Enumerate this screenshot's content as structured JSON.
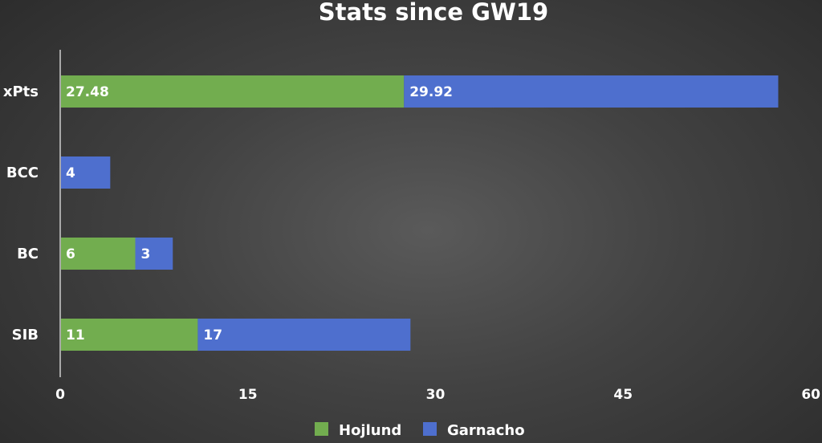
{
  "colors": {
    "Hojlund": "#72ad4f",
    "Garnacho": "#4e6fce",
    "axis": "#a8a8a8",
    "text": "#ffffff"
  },
  "chart_data": {
    "type": "bar",
    "orientation": "horizontal",
    "stacked": true,
    "title": "Stats since GW19",
    "categories": [
      "xPts",
      "BCC",
      "BC",
      "SIB"
    ],
    "series": [
      {
        "name": "Hojlund",
        "values": [
          27.48,
          0,
          6,
          11
        ],
        "labels": [
          "27.48",
          "",
          "6",
          "11"
        ]
      },
      {
        "name": "Garnacho",
        "values": [
          29.92,
          4,
          3,
          17
        ],
        "labels": [
          "29.92",
          "4",
          "3",
          "17"
        ]
      }
    ],
    "xlim": [
      0,
      60
    ],
    "xticks": [
      "0",
      "15",
      "30",
      "45",
      "60"
    ],
    "grid": false,
    "legend": "bottom"
  }
}
